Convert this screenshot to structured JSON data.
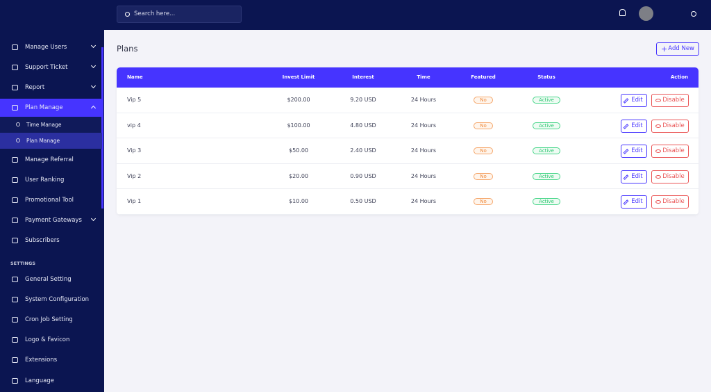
{
  "search_placeholder": "Search here...",
  "sidebar": {
    "items": [
      "Manage Users",
      "Support Ticket",
      "Report",
      "Plan Manage"
    ],
    "submenu": [
      "Time Manage",
      "Plan Manage"
    ],
    "items_after": [
      "Manage Referral",
      "User Ranking",
      "Promotional Tool",
      "Payment Gateways",
      "Subscribers"
    ],
    "section": "SETTINGS",
    "settings_items": [
      "General Setting",
      "System Configuration",
      "Cron Job Setting",
      "Logo & Favicon",
      "Extensions",
      "Language"
    ]
  },
  "page": {
    "title": "Plans",
    "add_button": "Add New"
  },
  "table": {
    "headers": [
      "Name",
      "Invest Limit",
      "Interest",
      "Time",
      "Featured",
      "Status",
      "Action"
    ],
    "rows": [
      [
        "Vip 5",
        "$200.00",
        "9.20 USD",
        "24 Hours",
        "No",
        "Active"
      ],
      [
        "vip 4",
        "$100.00",
        "4.80 USD",
        "24 Hours",
        "No",
        "Active"
      ],
      [
        "Vip 3",
        "$50.00",
        "2.40 USD",
        "24 Hours",
        "No",
        "Active"
      ],
      [
        "Vip 2",
        "$20.00",
        "0.90 USD",
        "24 Hours",
        "No",
        "Active"
      ],
      [
        "Vip 1",
        "$10.00",
        "0.50 USD",
        "24 Hours",
        "No",
        "Active"
      ]
    ],
    "actions": [
      "Edit",
      "Disable"
    ]
  }
}
